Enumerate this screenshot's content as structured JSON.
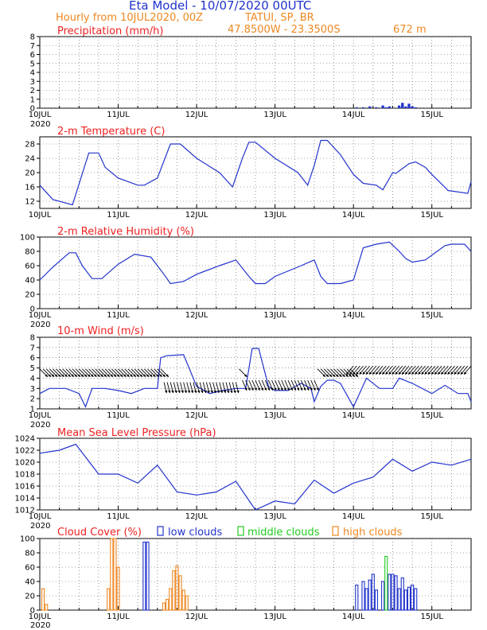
{
  "header": {
    "title": "Eta Model - 10/07/2020 00UTC",
    "subtitle": "Hourly from 10JUL2020, 00Z",
    "station": "TATUI, SP, BR",
    "coords": "47.8500W - 23.3500S",
    "elevation": "672  m"
  },
  "colors": {
    "title": "#2233cc",
    "subtitle": "#ee8822",
    "panel_title": "#ee2222",
    "line": "#2233cc",
    "low_clouds": "#2233cc",
    "middle_clouds": "#22cc22",
    "high_clouds": "#ee8822",
    "wind_barb": "#000000"
  },
  "x_axis": {
    "hours_total": 132,
    "day_labels": [
      "10JUL",
      "11JUL",
      "12JUL",
      "13JUL",
      "14JUL",
      "15JUL"
    ],
    "day_hours": [
      0,
      24,
      48,
      72,
      96,
      120
    ],
    "year_label": "2020"
  },
  "chart_data": [
    {
      "type": "bar",
      "title": "Precipitation (mm/h)",
      "ylim": [
        0,
        8
      ],
      "yticks": [
        0,
        1,
        2,
        3,
        4,
        5,
        6,
        7,
        8
      ],
      "x": [
        97,
        99,
        101,
        103,
        105,
        106,
        107,
        110,
        111,
        112,
        113,
        114,
        115
      ],
      "values": [
        0.1,
        0.1,
        0.2,
        0.1,
        0.3,
        0.1,
        0.2,
        0.3,
        0.6,
        0.2,
        0.5,
        0.2,
        0.1
      ]
    },
    {
      "type": "line",
      "title": "2-m Temperature (C)",
      "ylim": [
        10,
        30
      ],
      "yticks": [
        12,
        16,
        20,
        24,
        28
      ],
      "x": [
        0,
        4,
        10,
        15,
        18,
        20,
        24,
        30,
        32,
        36,
        40,
        43,
        48,
        55,
        59,
        62,
        64,
        66,
        72,
        79,
        82,
        84,
        86,
        88,
        92,
        96,
        99,
        103,
        105,
        108,
        109,
        113,
        115,
        118,
        120,
        125,
        131,
        132
      ],
      "values": [
        16.5,
        12.5,
        11,
        25.5,
        25.5,
        21.5,
        18.5,
        16.5,
        16.5,
        18.5,
        28,
        28,
        24,
        20,
        16,
        24,
        28.5,
        28.5,
        24,
        20,
        16.5,
        22,
        29,
        29,
        25,
        19.5,
        17,
        16.5,
        15.2,
        20,
        19.8,
        22.5,
        23,
        21.5,
        19.5,
        15,
        14.2,
        17.5
      ]
    },
    {
      "type": "line",
      "title": "2-m Relative Humidity (%)",
      "ylim": [
        0,
        100
      ],
      "yticks": [
        0,
        20,
        40,
        60,
        80,
        100
      ],
      "x": [
        0,
        4,
        9,
        11,
        13,
        16,
        19,
        24,
        29,
        34,
        38,
        40,
        44,
        48,
        55,
        60,
        64,
        66,
        69,
        72,
        80,
        84,
        86,
        88,
        92,
        96,
        99,
        103,
        107,
        110,
        112,
        114,
        118,
        124,
        126,
        130,
        132
      ],
      "values": [
        40,
        58,
        78,
        78,
        60,
        42,
        42,
        62,
        76,
        72,
        48,
        35,
        38,
        48,
        60,
        68,
        45,
        35,
        35,
        45,
        60,
        68,
        45,
        35,
        35,
        40,
        85,
        90,
        93,
        80,
        70,
        65,
        68,
        88,
        90,
        90,
        80
      ]
    },
    {
      "type": "line",
      "title": "10-m Wind (m/s)",
      "ylim": [
        1,
        8
      ],
      "yticks": [
        1,
        2,
        3,
        4,
        5,
        6,
        7,
        8
      ],
      "x": [
        0,
        3,
        8,
        12,
        14,
        16,
        20,
        24,
        28,
        32,
        36,
        37,
        39,
        44,
        48,
        52,
        56,
        60,
        63,
        65,
        67,
        70,
        72,
        76,
        80,
        83,
        84,
        86,
        88,
        90,
        92,
        96,
        100,
        104,
        108,
        110,
        114,
        120,
        124,
        128,
        131,
        132
      ],
      "values": [
        2.5,
        3,
        3,
        2.5,
        1.2,
        3,
        3,
        2.8,
        2.5,
        3,
        3,
        6,
        6.2,
        6.3,
        3.2,
        2.5,
        2.8,
        3,
        3,
        6.9,
        6.9,
        3.2,
        2.8,
        2.8,
        3.5,
        3,
        1.7,
        3.2,
        3.8,
        3.8,
        3.5,
        1.2,
        4,
        3,
        3,
        4,
        3.5,
        2.5,
        3.3,
        2.5,
        2.5,
        1.7
      ]
    },
    {
      "type": "line",
      "title": "Mean Sea Level Pressure (hPa)",
      "ylim": [
        1012,
        1024
      ],
      "yticks": [
        1012,
        1014,
        1016,
        1018,
        1020,
        1022,
        1024
      ],
      "x": [
        0,
        6,
        11,
        18,
        24,
        30,
        36,
        42,
        48,
        54,
        60,
        66,
        72,
        78,
        84,
        90,
        96,
        102,
        108,
        114,
        120,
        126,
        132
      ],
      "values": [
        1021.5,
        1022,
        1023,
        1018,
        1018,
        1016.5,
        1019.5,
        1015,
        1014.5,
        1015,
        1016.8,
        1012,
        1013.5,
        1013,
        1017,
        1014.8,
        1016.5,
        1017.5,
        1020.5,
        1018.5,
        1020,
        1019.5,
        1020.5
      ]
    },
    {
      "type": "bar",
      "title": "Cloud Cover (%)",
      "legend": [
        "low clouds",
        "middle clouds",
        "high clouds"
      ],
      "ylim": [
        0,
        100
      ],
      "yticks": [
        0,
        20,
        40,
        60,
        80,
        100
      ],
      "series": [
        {
          "name": "low clouds",
          "x": [
            32,
            33,
            97,
            99,
            100,
            101,
            102,
            103,
            105,
            107,
            108,
            109,
            110,
            111,
            112,
            113,
            114,
            115
          ],
          "values": [
            95,
            95,
            35,
            40,
            30,
            42,
            50,
            28,
            40,
            50,
            50,
            48,
            30,
            45,
            28,
            32,
            35,
            30
          ]
        },
        {
          "name": "middle clouds",
          "x": [
            106
          ],
          "values": [
            75
          ]
        },
        {
          "name": "high clouds",
          "x": [
            1,
            2,
            21,
            22,
            23,
            24,
            38,
            39,
            40,
            41,
            42,
            43,
            44,
            45
          ],
          "values": [
            30,
            8,
            30,
            100,
            100,
            60,
            10,
            15,
            30,
            55,
            62,
            48,
            28,
            20
          ]
        }
      ]
    }
  ]
}
